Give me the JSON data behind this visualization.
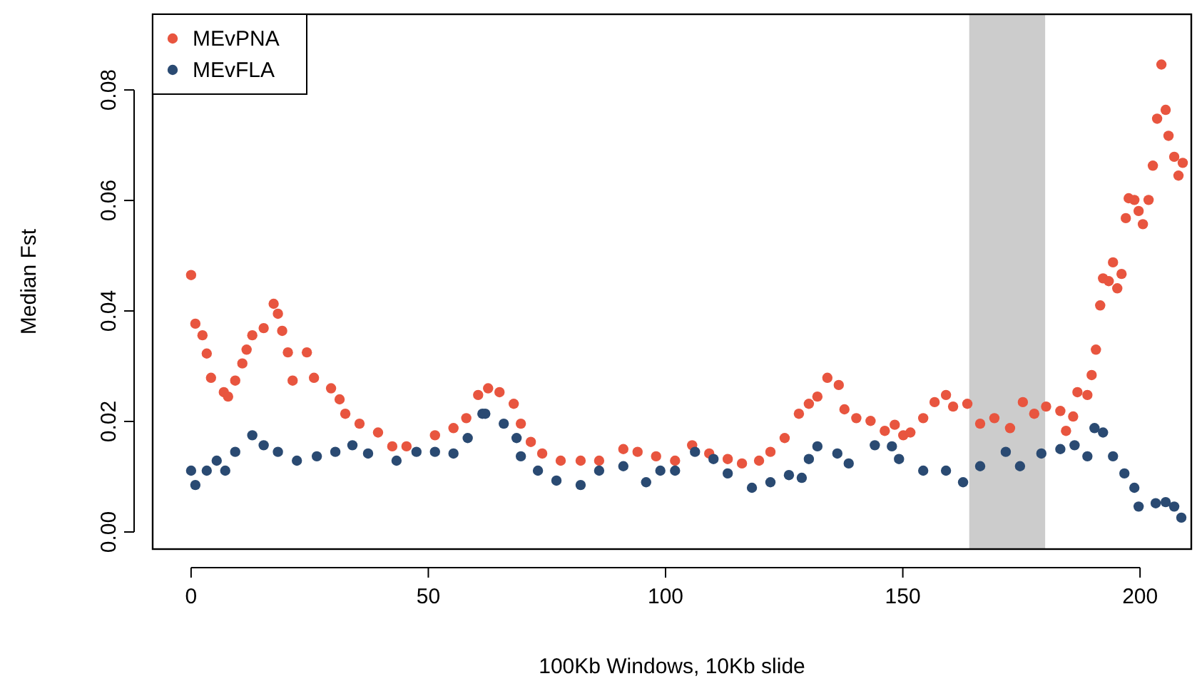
{
  "chart_data": {
    "type": "scatter",
    "xlabel": "100Kb Windows, 10Kb slide",
    "ylabel": "Median Fst",
    "xlim": [
      -8.1,
      210.8
    ],
    "ylim": [
      -0.0031,
      0.0937
    ],
    "xticks": [
      0,
      50,
      100,
      150,
      200
    ],
    "yticks": [
      {
        "value": 0,
        "label": "0.00"
      },
      {
        "value": 0.02,
        "label": "0.02"
      },
      {
        "value": 0.04,
        "label": "0.04"
      },
      {
        "value": 0.06,
        "label": "0.06"
      },
      {
        "value": 0.08,
        "label": "0.08"
      }
    ],
    "grid": false,
    "legend": "top left",
    "marker": "circle",
    "bands": [
      {
        "axis": "x",
        "from": 164,
        "to": 180,
        "color": "#cccccc"
      }
    ],
    "series": [
      {
        "name": "MEvPNA",
        "color": "#e8553f",
        "x": [
          0,
          0.9,
          2.4,
          3.3,
          4.2,
          6.9,
          7.8,
          9.3,
          10.8,
          11.7,
          12.9,
          15.3,
          17.4,
          18.3,
          19.2,
          20.4,
          21.4,
          24.4,
          25.9,
          29.5,
          31.3,
          32.5,
          35.5,
          39.4,
          42.4,
          45.4,
          51.4,
          55.3,
          58,
          60.5,
          62.6,
          65,
          68,
          69.5,
          71.6,
          74,
          77.9,
          82.1,
          86,
          91.1,
          94.1,
          98,
          102,
          105.6,
          109.2,
          113.1,
          116.1,
          119.7,
          122.1,
          125.1,
          128.1,
          130.2,
          132,
          134.1,
          136.5,
          137.7,
          140.2,
          143.2,
          146.2,
          148.3,
          150.1,
          151.6,
          154.3,
          156.7,
          159.1,
          160.6,
          163.6,
          166.3,
          169.3,
          172.6,
          175.3,
          177.7,
          180.2,
          183.2,
          184.4,
          185.9,
          186.8,
          188.9,
          189.8,
          190.7,
          191.6,
          192.2,
          193.4,
          194.3,
          195.2,
          196.1,
          197,
          197.6,
          198.8,
          199.7,
          200.6,
          201.8,
          202.7,
          203.6,
          204.5,
          205.4,
          206,
          207.2,
          208.1,
          209
        ],
        "values": [
          0.0465,
          0.0377,
          0.0356,
          0.0323,
          0.0279,
          0.0253,
          0.0245,
          0.0274,
          0.0305,
          0.033,
          0.0356,
          0.0369,
          0.0413,
          0.0395,
          0.0364,
          0.0325,
          0.0274,
          0.0325,
          0.0279,
          0.026,
          0.024,
          0.0214,
          0.0196,
          0.018,
          0.0155,
          0.0155,
          0.0175,
          0.0188,
          0.0206,
          0.0248,
          0.026,
          0.0253,
          0.0232,
          0.0196,
          0.0163,
          0.0142,
          0.0129,
          0.0129,
          0.0129,
          0.015,
          0.0145,
          0.0137,
          0.0129,
          0.0157,
          0.0142,
          0.0132,
          0.0124,
          0.0129,
          0.0145,
          0.017,
          0.0214,
          0.0232,
          0.0245,
          0.0279,
          0.0266,
          0.0222,
          0.0206,
          0.0201,
          0.0183,
          0.0194,
          0.0175,
          0.018,
          0.0206,
          0.0235,
          0.0248,
          0.0227,
          0.0232,
          0.0196,
          0.0206,
          0.0188,
          0.0235,
          0.0214,
          0.0227,
          0.0219,
          0.0183,
          0.0209,
          0.0253,
          0.0248,
          0.0284,
          0.033,
          0.041,
          0.0459,
          0.0454,
          0.0488,
          0.0441,
          0.0467,
          0.0568,
          0.0604,
          0.0601,
          0.0581,
          0.0557,
          0.0601,
          0.0663,
          0.0748,
          0.0846,
          0.0764,
          0.0717,
          0.0679,
          0.0645,
          0.0668
        ]
      },
      {
        "name": "MEvFLA",
        "color": "#2a4a72",
        "x": [
          0,
          0.9,
          3.3,
          5.4,
          7.2,
          9.3,
          12.9,
          15.3,
          18.3,
          22.3,
          26.5,
          30.4,
          34,
          37.3,
          43.3,
          47.5,
          51.4,
          55.3,
          58.3,
          61.4,
          62,
          65.9,
          68.6,
          69.5,
          73.1,
          77,
          82.1,
          86,
          91.1,
          95.9,
          98.9,
          102,
          106.2,
          110.1,
          113.1,
          118.2,
          122.1,
          126,
          128.7,
          130.2,
          132,
          136.2,
          138.6,
          144.1,
          147.7,
          149.2,
          154.3,
          159.1,
          162.7,
          166.3,
          171.7,
          174.7,
          179.2,
          183.2,
          186.2,
          188.9,
          190.4,
          192.2,
          194.3,
          196.7,
          198.8,
          199.7,
          203.3,
          205.4,
          207.2,
          208.7
        ],
        "values": [
          0.0111,
          0.0085,
          0.0111,
          0.0129,
          0.0111,
          0.0145,
          0.0175,
          0.0157,
          0.0145,
          0.0129,
          0.0137,
          0.0145,
          0.0157,
          0.0142,
          0.0129,
          0.0145,
          0.0145,
          0.0142,
          0.017,
          0.0214,
          0.0214,
          0.0196,
          0.017,
          0.0137,
          0.0111,
          0.0093,
          0.0085,
          0.0111,
          0.0119,
          0.009,
          0.0111,
          0.0111,
          0.0145,
          0.0132,
          0.0106,
          0.008,
          0.009,
          0.0103,
          0.0098,
          0.0132,
          0.0155,
          0.0142,
          0.0124,
          0.0157,
          0.0155,
          0.0132,
          0.0111,
          0.0111,
          0.009,
          0.0119,
          0.0145,
          0.0119,
          0.0142,
          0.015,
          0.0157,
          0.0137,
          0.0188,
          0.018,
          0.0137,
          0.0106,
          0.008,
          0.0046,
          0.0052,
          0.0054,
          0.0046,
          0.0026
        ]
      }
    ]
  }
}
